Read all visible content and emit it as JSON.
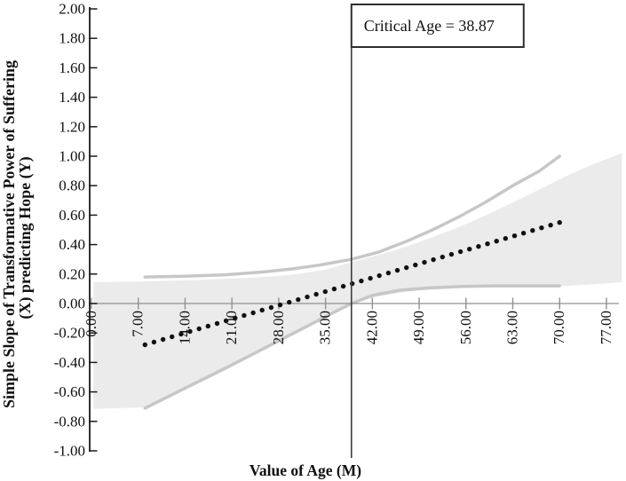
{
  "chart_data": {
    "type": "line",
    "title": "",
    "xlabel": "Value of Age (M)",
    "ylabel_lines": [
      "Simple Slope of Transformative Power of Suffering",
      "(X) predicting Hope (Y)"
    ],
    "x_tick_labels": [
      "0.00",
      "7.00",
      "14.00",
      "21.00",
      "28.00",
      "35.00",
      "42.00",
      "49.00",
      "56.00",
      "63.00",
      "70.00",
      "77.00"
    ],
    "y_tick_labels": [
      "2.00",
      "1.80",
      "1.60",
      "1.40",
      "1.20",
      "1.00",
      "0.80",
      "0.60",
      "0.40",
      "0.20",
      "0.00",
      "-0.20",
      "-0.40",
      "-0.60",
      "-0.80",
      "-1.00"
    ],
    "xlim": [
      0,
      79.5
    ],
    "ylim": [
      -1.0,
      2.0
    ],
    "grid": "off",
    "legend": "none",
    "annotation": {
      "label": "Critical Age = 38.87",
      "x": 38.87
    },
    "series": [
      {
        "name": "simple-slope-estimate",
        "style": "dotted-black",
        "x": [
          8,
          70
        ],
        "y": [
          -0.28,
          0.55
        ],
        "n_dots": 47
      },
      {
        "name": "upper-confidence-bound",
        "style": "gray-line",
        "x": [
          8,
          14,
          20,
          26,
          30,
          34,
          38.87,
          43,
          47,
          51,
          55,
          59,
          63,
          67,
          70
        ],
        "y": [
          0.18,
          0.185,
          0.195,
          0.215,
          0.235,
          0.26,
          0.3,
          0.35,
          0.42,
          0.5,
          0.59,
          0.69,
          0.8,
          0.9,
          1.0
        ]
      },
      {
        "name": "lower-confidence-bound",
        "style": "gray-line",
        "x": [
          8,
          14,
          20,
          26,
          32,
          36,
          38.87,
          42,
          46,
          50,
          55,
          60,
          65,
          70
        ],
        "y": [
          -0.71,
          -0.575,
          -0.44,
          -0.3,
          -0.16,
          -0.065,
          0.0,
          0.055,
          0.09,
          0.105,
          0.115,
          0.12,
          0.12,
          0.12
        ]
      }
    ],
    "band": {
      "name": "confidence-region",
      "x": [
        0.3,
        8,
        16,
        24,
        30,
        35,
        38.87,
        43,
        47,
        51,
        55,
        59,
        63,
        67,
        71,
        75,
        79.3
      ],
      "upper": [
        0.145,
        0.15,
        0.16,
        0.175,
        0.195,
        0.23,
        0.28,
        0.33,
        0.385,
        0.45,
        0.52,
        0.6,
        0.685,
        0.775,
        0.865,
        0.945,
        1.02
      ],
      "lower": [
        -0.715,
        -0.705,
        -0.53,
        -0.35,
        -0.21,
        -0.095,
        0.0,
        0.05,
        0.08,
        0.095,
        0.105,
        0.11,
        0.115,
        0.115,
        0.12,
        0.13,
        0.145
      ]
    },
    "colors": {
      "band_fill": "#ebebeb",
      "ci_line": "#c7c7c7",
      "dot": "#111111",
      "y_axis": "#1a1a1a",
      "zero_line": "#909090",
      "critical_line": "#3d3d3d",
      "box_border": "#2f2f2f",
      "text": "#111111",
      "background": "#ffffff"
    }
  }
}
